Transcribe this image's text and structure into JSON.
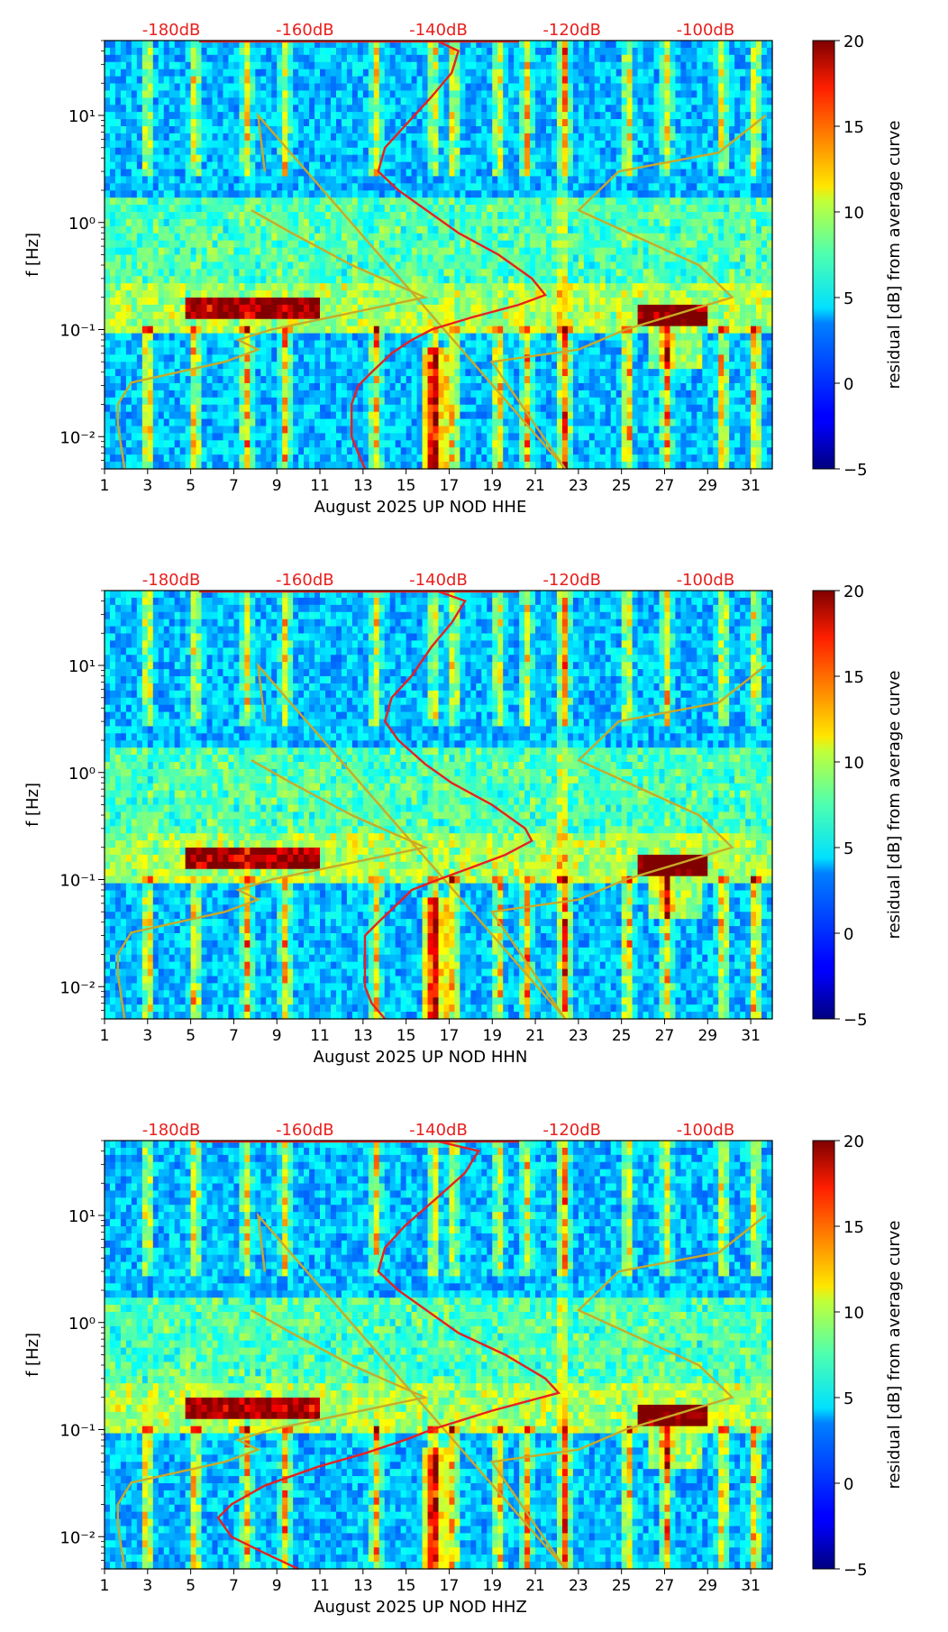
{
  "figure": {
    "colorbar_label": "residual [dB] from average curve",
    "colorbar_ticks": [
      "20",
      "15",
      "10",
      "5",
      "0",
      "−5"
    ],
    "top_axis_ticks": [
      "-180dB",
      "-160dB",
      "-140dB",
      "-120dB",
      "-100dB"
    ],
    "colors": {
      "noise_curve": "#e8201e",
      "model_curve": "#c8aa28",
      "top_tick_text": "#e8201e"
    }
  },
  "chart_data": [
    {
      "type": "heatmap",
      "title": "",
      "xlabel": "August 2025 UP NOD  HHE",
      "ylabel": "f [Hz]",
      "x_tick_labels": [
        "1",
        "3",
        "5",
        "7",
        "9",
        "11",
        "13",
        "15",
        "17",
        "19",
        "21",
        "23",
        "25",
        "27",
        "29",
        "31"
      ],
      "x_range": [
        1,
        32
      ],
      "y_scale": "log",
      "y_range_hz": [
        0.005,
        50
      ],
      "y_tick_labels": [
        "10⁻²",
        "10⁻¹",
        "10⁰",
        "10¹"
      ],
      "colorbar_range_db": [
        -5,
        20
      ],
      "top_axis_db_range": [
        -190,
        -90
      ],
      "red_curve_db": [
        {
          "f": 0.005,
          "db": -151
        },
        {
          "f": 0.007,
          "db": -152
        },
        {
          "f": 0.01,
          "db": -153
        },
        {
          "f": 0.02,
          "db": -153
        },
        {
          "f": 0.03,
          "db": -152
        },
        {
          "f": 0.04,
          "db": -150
        },
        {
          "f": 0.06,
          "db": -147
        },
        {
          "f": 0.08,
          "db": -144
        },
        {
          "f": 0.1,
          "db": -141
        },
        {
          "f": 0.13,
          "db": -135
        },
        {
          "f": 0.17,
          "db": -128
        },
        {
          "f": 0.21,
          "db": -124
        },
        {
          "f": 0.3,
          "db": -126
        },
        {
          "f": 0.5,
          "db": -131
        },
        {
          "f": 0.8,
          "db": -137
        },
        {
          "f": 1.2,
          "db": -141
        },
        {
          "f": 2,
          "db": -146
        },
        {
          "f": 3,
          "db": -149
        },
        {
          "f": 5,
          "db": -148
        },
        {
          "f": 8,
          "db": -145
        },
        {
          "f": 15,
          "db": -141
        },
        {
          "f": 25,
          "db": -138
        },
        {
          "f": 40,
          "db": -137
        },
        {
          "f": 49,
          "db": -140
        }
      ],
      "yellow_curve_db": [
        {
          "f": 0.005,
          "db": -187
        },
        {
          "f": 0.013,
          "db": -188
        },
        {
          "f": 0.02,
          "db": -188
        },
        {
          "f": 0.032,
          "db": -186
        },
        {
          "f": 0.05,
          "db": -172
        },
        {
          "f": 0.065,
          "db": -167
        },
        {
          "f": 0.08,
          "db": -170
        },
        {
          "f": 0.1,
          "db": -165
        },
        {
          "f": 0.2,
          "db": -142
        },
        {
          "f": 0.4,
          "db": -153
        },
        {
          "f": 0.8,
          "db": -162
        },
        {
          "f": 1.3,
          "db": -168
        },
        {
          "f": 3,
          "db": -166
        },
        {
          "f": 10,
          "db": -167
        },
        {
          "f": 0.005,
          "db": -121
        },
        {
          "f": 0.05,
          "db": -132
        },
        {
          "f": 0.065,
          "db": -119
        },
        {
          "f": 0.1,
          "db": -112
        },
        {
          "f": 0.2,
          "db": -96
        },
        {
          "f": 0.4,
          "db": -101
        },
        {
          "f": 1.3,
          "db": -119
        },
        {
          "f": 3,
          "db": -113
        },
        {
          "f": 4.5,
          "db": -98
        },
        {
          "f": 10,
          "db": -91
        }
      ]
    },
    {
      "type": "heatmap",
      "title": "",
      "xlabel": "August 2025 UP NOD  HHN",
      "ylabel": "f [Hz]",
      "x_tick_labels": [
        "1",
        "3",
        "5",
        "7",
        "9",
        "11",
        "13",
        "15",
        "17",
        "19",
        "21",
        "23",
        "25",
        "27",
        "29",
        "31"
      ],
      "x_range": [
        1,
        32
      ],
      "y_scale": "log",
      "y_range_hz": [
        0.005,
        50
      ],
      "y_tick_labels": [
        "10⁻²",
        "10⁻¹",
        "10⁰",
        "10¹"
      ],
      "colorbar_range_db": [
        -5,
        20
      ],
      "top_axis_db_range": [
        -190,
        -90
      ],
      "red_curve_db": [
        {
          "f": 0.005,
          "db": -148
        },
        {
          "f": 0.007,
          "db": -150
        },
        {
          "f": 0.01,
          "db": -151
        },
        {
          "f": 0.02,
          "db": -151
        },
        {
          "f": 0.03,
          "db": -151
        },
        {
          "f": 0.04,
          "db": -149
        },
        {
          "f": 0.06,
          "db": -146
        },
        {
          "f": 0.08,
          "db": -144
        },
        {
          "f": 0.1,
          "db": -140
        },
        {
          "f": 0.13,
          "db": -135
        },
        {
          "f": 0.17,
          "db": -130
        },
        {
          "f": 0.23,
          "db": -126
        },
        {
          "f": 0.3,
          "db": -127
        },
        {
          "f": 0.5,
          "db": -132
        },
        {
          "f": 0.8,
          "db": -138
        },
        {
          "f": 1.2,
          "db": -142
        },
        {
          "f": 2,
          "db": -146
        },
        {
          "f": 3,
          "db": -148
        },
        {
          "f": 5,
          "db": -147
        },
        {
          "f": 8,
          "db": -144
        },
        {
          "f": 15,
          "db": -141
        },
        {
          "f": 25,
          "db": -138
        },
        {
          "f": 40,
          "db": -136
        },
        {
          "f": 49,
          "db": -140
        }
      ],
      "yellow_curve_db": [
        {
          "f": 0.005,
          "db": -187
        },
        {
          "f": 0.013,
          "db": -188
        },
        {
          "f": 0.02,
          "db": -188
        },
        {
          "f": 0.032,
          "db": -186
        },
        {
          "f": 0.05,
          "db": -172
        },
        {
          "f": 0.065,
          "db": -167
        },
        {
          "f": 0.08,
          "db": -170
        },
        {
          "f": 0.1,
          "db": -165
        },
        {
          "f": 0.2,
          "db": -142
        },
        {
          "f": 0.4,
          "db": -153
        },
        {
          "f": 0.8,
          "db": -162
        },
        {
          "f": 1.3,
          "db": -168
        },
        {
          "f": 3,
          "db": -166
        },
        {
          "f": 10,
          "db": -167
        },
        {
          "f": 0.005,
          "db": -121
        },
        {
          "f": 0.05,
          "db": -132
        },
        {
          "f": 0.065,
          "db": -119
        },
        {
          "f": 0.1,
          "db": -112
        },
        {
          "f": 0.2,
          "db": -96
        },
        {
          "f": 0.4,
          "db": -101
        },
        {
          "f": 1.3,
          "db": -119
        },
        {
          "f": 3,
          "db": -113
        },
        {
          "f": 4.5,
          "db": -98
        },
        {
          "f": 10,
          "db": -91
        }
      ]
    },
    {
      "type": "heatmap",
      "title": "",
      "xlabel": "August 2025 UP NOD  HHZ",
      "ylabel": "f [Hz]",
      "x_tick_labels": [
        "1",
        "3",
        "5",
        "7",
        "9",
        "11",
        "13",
        "15",
        "17",
        "19",
        "21",
        "23",
        "25",
        "27",
        "29",
        "31"
      ],
      "x_range": [
        1,
        32
      ],
      "y_scale": "log",
      "y_range_hz": [
        0.005,
        50
      ],
      "y_tick_labels": [
        "10⁻²",
        "10⁻¹",
        "10⁰",
        "10¹"
      ],
      "colorbar_range_db": [
        -5,
        20
      ],
      "top_axis_db_range": [
        -190,
        -90
      ],
      "red_curve_db": [
        {
          "f": 0.005,
          "db": -161
        },
        {
          "f": 0.007,
          "db": -166
        },
        {
          "f": 0.01,
          "db": -171
        },
        {
          "f": 0.015,
          "db": -173
        },
        {
          "f": 0.02,
          "db": -171
        },
        {
          "f": 0.03,
          "db": -166
        },
        {
          "f": 0.045,
          "db": -158
        },
        {
          "f": 0.06,
          "db": -151
        },
        {
          "f": 0.08,
          "db": -145
        },
        {
          "f": 0.1,
          "db": -141
        },
        {
          "f": 0.15,
          "db": -132
        },
        {
          "f": 0.22,
          "db": -122
        },
        {
          "f": 0.3,
          "db": -124
        },
        {
          "f": 0.5,
          "db": -130
        },
        {
          "f": 0.8,
          "db": -137
        },
        {
          "f": 1.2,
          "db": -141
        },
        {
          "f": 2,
          "db": -146
        },
        {
          "f": 3,
          "db": -149
        },
        {
          "f": 5,
          "db": -148
        },
        {
          "f": 8,
          "db": -145
        },
        {
          "f": 15,
          "db": -140
        },
        {
          "f": 25,
          "db": -136
        },
        {
          "f": 40,
          "db": -134
        },
        {
          "f": 49,
          "db": -140
        }
      ],
      "yellow_curve_db": [
        {
          "f": 0.005,
          "db": -187
        },
        {
          "f": 0.013,
          "db": -188
        },
        {
          "f": 0.02,
          "db": -188
        },
        {
          "f": 0.032,
          "db": -186
        },
        {
          "f": 0.05,
          "db": -172
        },
        {
          "f": 0.065,
          "db": -167
        },
        {
          "f": 0.08,
          "db": -170
        },
        {
          "f": 0.1,
          "db": -165
        },
        {
          "f": 0.2,
          "db": -142
        },
        {
          "f": 0.4,
          "db": -153
        },
        {
          "f": 0.8,
          "db": -162
        },
        {
          "f": 1.3,
          "db": -168
        },
        {
          "f": 3,
          "db": -166
        },
        {
          "f": 10,
          "db": -167
        },
        {
          "f": 0.005,
          "db": -121
        },
        {
          "f": 0.05,
          "db": -132
        },
        {
          "f": 0.065,
          "db": -119
        },
        {
          "f": 0.1,
          "db": -112
        },
        {
          "f": 0.2,
          "db": -96
        },
        {
          "f": 0.4,
          "db": -101
        },
        {
          "f": 1.3,
          "db": -119
        },
        {
          "f": 3,
          "db": -113
        },
        {
          "f": 4.5,
          "db": -98
        },
        {
          "f": 10,
          "db": -91
        }
      ]
    }
  ]
}
